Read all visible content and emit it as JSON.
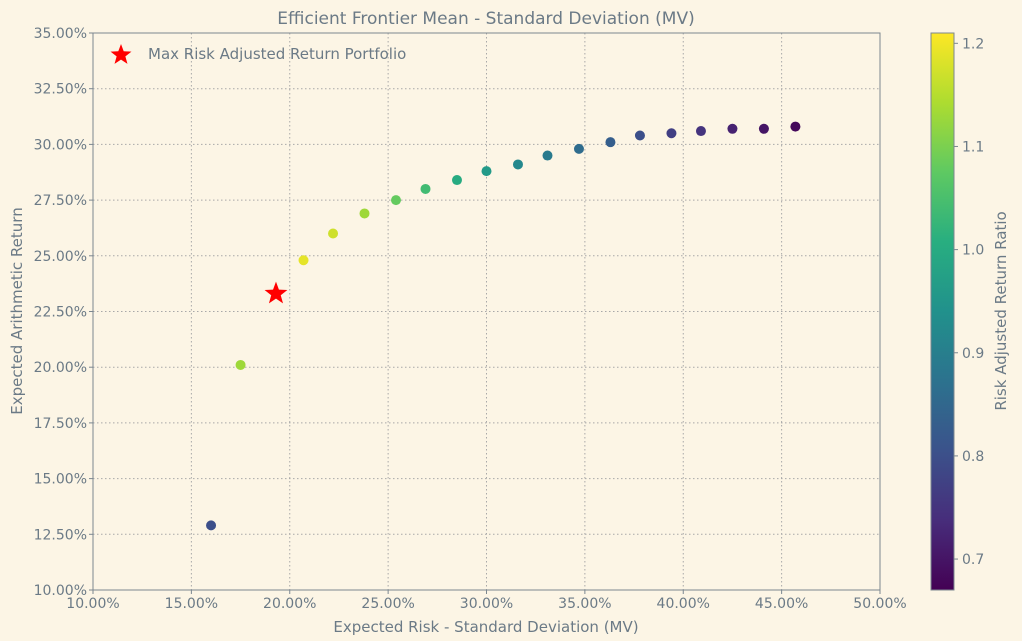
{
  "chart_data": {
    "type": "scatter",
    "title": "Efficient Frontier Mean - Standard Deviation (MV)",
    "xlabel": "Expected Risk - Standard Deviation (MV)",
    "ylabel": "Expected Arithmetic Return",
    "xlim": [
      0.1,
      0.5
    ],
    "ylim": [
      0.1,
      0.35
    ],
    "x_ticks": [
      "10.00%",
      "15.00%",
      "20.00%",
      "25.00%",
      "30.00%",
      "35.00%",
      "40.00%",
      "45.00%",
      "50.00%"
    ],
    "y_ticks": [
      "10.00%",
      "12.50%",
      "15.00%",
      "17.50%",
      "20.00%",
      "22.50%",
      "25.00%",
      "27.50%",
      "30.00%",
      "32.50%",
      "35.00%"
    ],
    "grid": true,
    "points": [
      {
        "x": 0.16,
        "y": 0.129,
        "ratio": 0.8
      },
      {
        "x": 0.175,
        "y": 0.201,
        "ratio": 1.13
      },
      {
        "x": 0.207,
        "y": 0.248,
        "ratio": 1.19
      },
      {
        "x": 0.222,
        "y": 0.26,
        "ratio": 1.17
      },
      {
        "x": 0.238,
        "y": 0.269,
        "ratio": 1.13
      },
      {
        "x": 0.254,
        "y": 0.275,
        "ratio": 1.08
      },
      {
        "x": 0.269,
        "y": 0.28,
        "ratio": 1.04
      },
      {
        "x": 0.285,
        "y": 0.284,
        "ratio": 1.0
      },
      {
        "x": 0.3,
        "y": 0.288,
        "ratio": 0.96
      },
      {
        "x": 0.316,
        "y": 0.291,
        "ratio": 0.92
      },
      {
        "x": 0.331,
        "y": 0.295,
        "ratio": 0.89
      },
      {
        "x": 0.347,
        "y": 0.298,
        "ratio": 0.86
      },
      {
        "x": 0.363,
        "y": 0.301,
        "ratio": 0.83
      },
      {
        "x": 0.378,
        "y": 0.304,
        "ratio": 0.8
      },
      {
        "x": 0.394,
        "y": 0.305,
        "ratio": 0.77
      },
      {
        "x": 0.409,
        "y": 0.306,
        "ratio": 0.75
      },
      {
        "x": 0.425,
        "y": 0.307,
        "ratio": 0.72
      },
      {
        "x": 0.441,
        "y": 0.307,
        "ratio": 0.7
      },
      {
        "x": 0.457,
        "y": 0.308,
        "ratio": 0.68
      }
    ],
    "highlight": {
      "label": "Max Risk Adjusted Return Portfolio",
      "x": 0.193,
      "y": 0.233,
      "color": "#ff0000"
    },
    "colorbar": {
      "label": "Risk Adjusted Return Ratio",
      "min": 0.67,
      "max": 1.21,
      "ticks": [
        0.7,
        0.8,
        0.9,
        1.0,
        1.1,
        1.2
      ],
      "tick_labels": [
        "0.7",
        "0.8",
        "0.9",
        "1.0",
        "1.1",
        "1.2"
      ],
      "colormap": "viridis"
    },
    "legend": "top-left",
    "colors": {
      "background": "#fcf5e5",
      "axis": "#7b8790",
      "text": "#6b7a86",
      "grid": "#a8a8a8"
    }
  }
}
